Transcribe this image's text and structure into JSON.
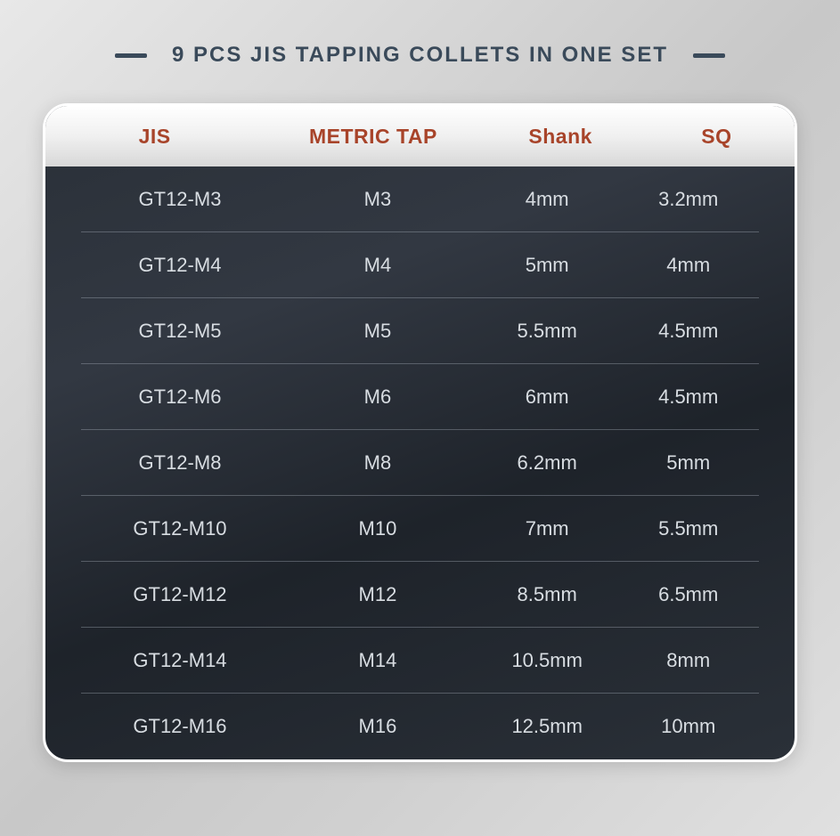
{
  "title": "9 PCS JIS TAPPING COLLETS IN ONE SET",
  "colors": {
    "title_text": "#3a4a5a",
    "header_text": "#a8442a",
    "cell_text": "#d8dde2",
    "card_border": "#ffffff"
  },
  "table": {
    "columns": [
      "JIS",
      "METRIC TAP",
      "Shank",
      "SQ"
    ],
    "rows": [
      [
        "GT12-M3",
        "M3",
        "4mm",
        "3.2mm"
      ],
      [
        "GT12-M4",
        "M4",
        "5mm",
        "4mm"
      ],
      [
        "GT12-M5",
        "M5",
        "5.5mm",
        "4.5mm"
      ],
      [
        "GT12-M6",
        "M6",
        "6mm",
        "4.5mm"
      ],
      [
        "GT12-M8",
        "M8",
        "6.2mm",
        "5mm"
      ],
      [
        "GT12-M10",
        "M10",
        "7mm",
        "5.5mm"
      ],
      [
        "GT12-M12",
        "M12",
        "8.5mm",
        "6.5mm"
      ],
      [
        "GT12-M14",
        "M14",
        "10.5mm",
        "8mm"
      ],
      [
        "GT12-M16",
        "M16",
        "12.5mm",
        "10mm"
      ]
    ]
  }
}
